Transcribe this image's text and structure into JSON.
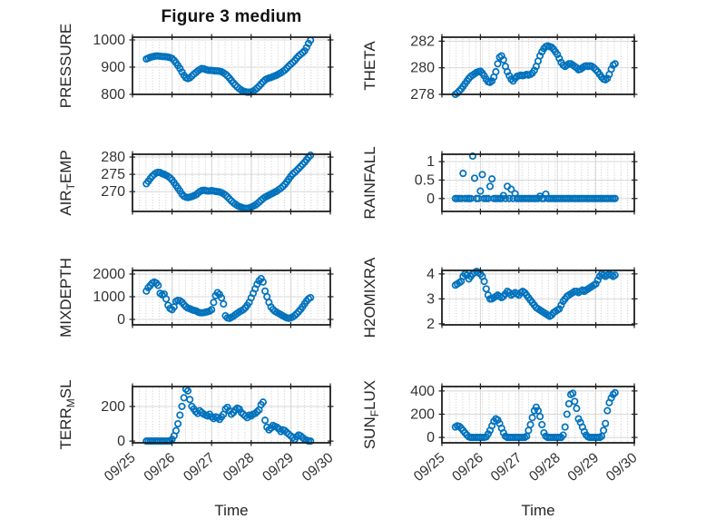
{
  "title": "Figure 3 medium",
  "xlabel": "Time",
  "colors": {
    "marker": "#0072BD",
    "axis": "#1f1f1f",
    "grid": "#d8d8d8",
    "minor_dot": "#c6c6c6",
    "text": "#333333"
  },
  "chart_data": {
    "type": "scatter",
    "title": "Figure 3 medium",
    "x_start": 0.35,
    "x_step": 0.05,
    "x_axis": {
      "lim": [
        0,
        5
      ],
      "ticks": [
        0,
        1,
        2,
        3,
        4,
        5
      ],
      "tick_labels": [
        "09/25",
        "09/26",
        "09/27",
        "09/28",
        "09/29",
        "09/30"
      ],
      "label": "Time"
    },
    "subplots": [
      {
        "name": "PRESSURE",
        "ylabel": "PRESSURE",
        "side": "left",
        "row": 0,
        "ylim": [
          800,
          1010
        ],
        "yticks": [
          800,
          900,
          1000
        ],
        "values": [
          930,
          933,
          936,
          938,
          940,
          941,
          941,
          940,
          939,
          939,
          938,
          937,
          935,
          932,
          925,
          916,
          906,
          895,
          882,
          870,
          861,
          858,
          861,
          867,
          874,
          880,
          886,
          891,
          895,
          894,
          891,
          889,
          888,
          888,
          887,
          886,
          886,
          885,
          883,
          879,
          874,
          868,
          860,
          851,
          842,
          834,
          827,
          821,
          816,
          812,
          810,
          808,
          808,
          809,
          812,
          817,
          823,
          830,
          838,
          846,
          853,
          857,
          860,
          862,
          865,
          868,
          871,
          875,
          879,
          884,
          889,
          896,
          904,
          911,
          917,
          924,
          933,
          941,
          947,
          953,
          960,
          972,
          987,
          999
        ]
      },
      {
        "name": "THETA",
        "ylabel": "THETA",
        "side": "right",
        "row": 0,
        "ylim": [
          278,
          282.3
        ],
        "yticks": [
          278,
          280,
          282
        ],
        "values": [
          278.0,
          278.1,
          278.25,
          278.4,
          278.6,
          278.8,
          279.0,
          279.2,
          279.35,
          279.45,
          279.55,
          279.65,
          279.7,
          279.75,
          279.6,
          279.4,
          279.15,
          278.95,
          278.9,
          279.0,
          279.3,
          279.7,
          280.3,
          280.8,
          280.9,
          280.6,
          280.1,
          279.7,
          279.4,
          279.15,
          279.0,
          279.2,
          279.35,
          279.4,
          279.45,
          279.4,
          279.45,
          279.5,
          279.45,
          279.5,
          279.6,
          279.8,
          280.1,
          280.5,
          280.9,
          281.2,
          281.45,
          281.6,
          281.65,
          281.6,
          281.55,
          281.4,
          281.2,
          281.0,
          280.7,
          280.4,
          280.2,
          280.1,
          280.2,
          280.3,
          280.3,
          280.2,
          280.1,
          280.0,
          279.85,
          279.9,
          280.0,
          280.1,
          280.15,
          280.1,
          280.15,
          280.1,
          280.0,
          279.85,
          279.7,
          279.5,
          279.3,
          279.15,
          279.1,
          279.2,
          279.5,
          279.9,
          280.2,
          280.3
        ]
      },
      {
        "name": "AIR_TEMP",
        "ylabel": "AIR_TEMP",
        "side": "left",
        "row": 1,
        "ylim": [
          264.3,
          280.8
        ],
        "yticks": [
          270,
          275,
          280
        ],
        "values": [
          272.3,
          273.0,
          273.8,
          274.5,
          275.0,
          275.4,
          275.6,
          275.5,
          275.2,
          275.0,
          274.7,
          274.4,
          274.0,
          273.4,
          272.6,
          271.8,
          271.0,
          270.2,
          269.3,
          268.7,
          268.4,
          268.3,
          268.4,
          268.6,
          268.8,
          269.1,
          269.5,
          270.0,
          270.3,
          270.4,
          270.3,
          270.2,
          270.2,
          270.3,
          270.2,
          270.1,
          270.0,
          269.9,
          269.7,
          269.4,
          269.0,
          268.5,
          267.9,
          267.3,
          266.8,
          266.4,
          266.0,
          265.7,
          265.5,
          265.3,
          265.2,
          265.2,
          265.3,
          265.5,
          265.8,
          266.1,
          266.5,
          267.0,
          267.5,
          268.0,
          268.4,
          268.7,
          269.0,
          269.3,
          269.6,
          269.9,
          270.2,
          270.6,
          271.0,
          271.5,
          272.1,
          272.8,
          273.6,
          274.4,
          275.1,
          275.6,
          276.1,
          276.7,
          277.3,
          277.9,
          278.5,
          279.2,
          279.9,
          280.5
        ]
      },
      {
        "name": "RAINFALL",
        "ylabel": "RAINFALL",
        "side": "right",
        "row": 1,
        "ylim": [
          -0.35,
          1.2
        ],
        "yticks": [
          0,
          0.5,
          1
        ],
        "values": [
          0,
          0,
          0,
          0,
          0.68,
          0,
          0,
          0,
          0,
          1.15,
          0.55,
          0,
          0,
          0.2,
          0.65,
          0,
          0,
          0,
          0.33,
          0.53,
          0,
          0,
          0,
          0,
          0,
          0.08,
          0,
          0.33,
          0,
          0.25,
          0,
          0.13,
          0,
          0,
          0,
          0,
          0,
          0,
          0,
          0,
          0,
          0,
          0,
          0,
          0.06,
          0,
          0,
          0.12,
          0,
          0,
          0,
          0,
          0,
          0,
          0,
          0,
          0,
          0,
          0,
          0,
          0,
          0,
          0,
          0,
          0,
          0,
          0,
          0,
          0,
          0,
          0,
          0,
          0,
          0,
          0,
          0,
          0,
          0,
          0,
          0,
          0,
          0,
          0,
          0
        ]
      },
      {
        "name": "MIXDEPTH",
        "ylabel": "MIXDEPTH",
        "side": "left",
        "row": 2,
        "ylim": [
          -240,
          2160
        ],
        "yticks": [
          0,
          1000,
          2000
        ],
        "values": [
          1250,
          1400,
          1500,
          1600,
          1650,
          1600,
          1500,
          1150,
          1080,
          1120,
          900,
          620,
          480,
          430,
          550,
          800,
          840,
          820,
          760,
          650,
          560,
          500,
          470,
          430,
          400,
          380,
          330,
          300,
          290,
          300,
          320,
          340,
          370,
          430,
          750,
          1050,
          1180,
          1100,
          950,
          680,
          160,
          70,
          50,
          90,
          140,
          210,
          270,
          330,
          380,
          430,
          510,
          620,
          750,
          950,
          1150,
          1350,
          1550,
          1700,
          1800,
          1650,
          1250,
          1000,
          750,
          550,
          440,
          360,
          310,
          260,
          210,
          160,
          110,
          70,
          50,
          70,
          110,
          170,
          250,
          340,
          440,
          560,
          690,
          810,
          910,
          960
        ]
      },
      {
        "name": "H2OMIXRA",
        "ylabel": "H2OMIXRA",
        "side": "right",
        "row": 2,
        "ylim": [
          1.96,
          4.14
        ],
        "yticks": [
          2,
          3,
          4
        ],
        "values": [
          3.55,
          3.6,
          3.65,
          3.7,
          3.9,
          4.0,
          3.95,
          3.8,
          3.9,
          4.0,
          4.05,
          4.1,
          4.05,
          4.0,
          3.9,
          3.7,
          3.4,
          3.15,
          3.0,
          3.0,
          3.05,
          3.1,
          3.15,
          3.1,
          3.05,
          3.1,
          3.2,
          3.3,
          3.25,
          3.15,
          3.2,
          3.25,
          3.2,
          3.15,
          3.25,
          3.3,
          3.25,
          3.15,
          3.05,
          2.95,
          2.85,
          2.75,
          2.65,
          2.6,
          2.55,
          2.5,
          2.45,
          2.4,
          2.35,
          2.3,
          2.35,
          2.45,
          2.5,
          2.55,
          2.6,
          2.75,
          2.9,
          3.0,
          3.1,
          3.15,
          3.2,
          3.25,
          3.3,
          3.3,
          3.25,
          3.3,
          3.35,
          3.3,
          3.35,
          3.4,
          3.45,
          3.5,
          3.55,
          3.6,
          3.75,
          3.9,
          4.0,
          3.95,
          3.9,
          3.95,
          4.0,
          3.95,
          3.9,
          3.95
        ]
      },
      {
        "name": "TERR_MSL",
        "ylabel": "TERR_MSL",
        "side": "left",
        "row": 3,
        "ylim": [
          -10,
          315
        ],
        "yticks": [
          0,
          200
        ],
        "values": [
          0,
          0,
          0,
          0,
          0,
          0,
          0,
          0,
          0,
          0,
          0,
          0,
          0,
          10,
          30,
          60,
          100,
          150,
          200,
          250,
          300,
          290,
          240,
          200,
          185,
          170,
          160,
          175,
          165,
          155,
          150,
          145,
          155,
          140,
          130,
          140,
          135,
          125,
          140,
          155,
          185,
          195,
          175,
          155,
          165,
          180,
          190,
          185,
          165,
          155,
          145,
          135,
          150,
          145,
          155,
          160,
          170,
          180,
          210,
          225,
          120,
          80,
          65,
          75,
          90,
          85,
          80,
          70,
          55,
          65,
          60,
          50,
          40,
          30,
          20,
          10,
          25,
          35,
          30,
          20,
          10,
          5,
          0,
          0
        ]
      },
      {
        "name": "SUN_FLUX",
        "ylabel": "SUN_FLUX",
        "side": "right",
        "row": 3,
        "ylim": [
          -46,
          438
        ],
        "yticks": [
          0,
          200,
          400
        ],
        "values": [
          90,
          100,
          95,
          80,
          60,
          40,
          20,
          5,
          0,
          0,
          0,
          0,
          0,
          0,
          0,
          0,
          5,
          30,
          60,
          100,
          140,
          160,
          150,
          120,
          80,
          40,
          10,
          0,
          0,
          0,
          0,
          0,
          0,
          0,
          0,
          0,
          0,
          10,
          60,
          110,
          170,
          230,
          260,
          230,
          180,
          110,
          40,
          10,
          0,
          0,
          0,
          0,
          0,
          0,
          0,
          0,
          20,
          90,
          200,
          290,
          370,
          380,
          310,
          250,
          160,
          130,
          90,
          50,
          20,
          5,
          0,
          0,
          0,
          0,
          0,
          0,
          10,
          60,
          120,
          230,
          300,
          340,
          370,
          385
        ]
      }
    ]
  }
}
